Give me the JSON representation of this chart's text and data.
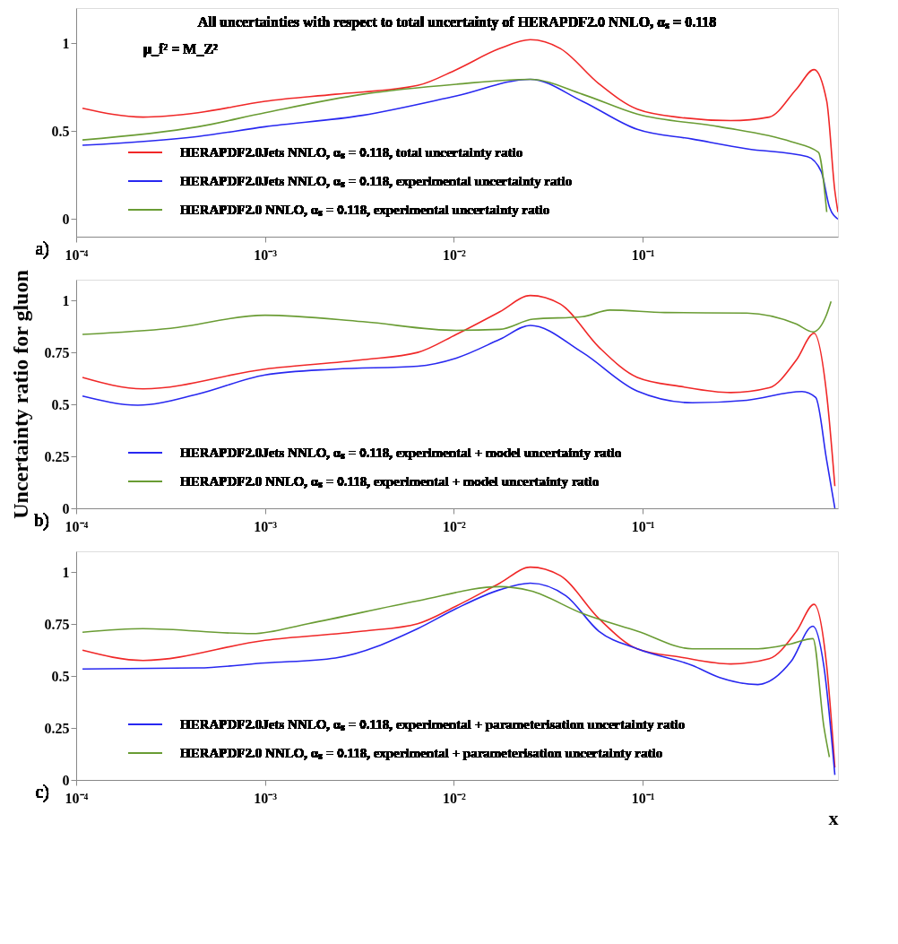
{
  "chart_data": [
    {
      "type": "line",
      "title": "All uncertainties with respect to total uncertainty of  HERAPDF2.0 NNLO, αₛ = 0.118",
      "subtitle": "μ_f² = M_Z²",
      "log": "x",
      "legend": "bottom left",
      "annotations": [
        "a)"
      ],
      "xlim": [
        0.0001,
        1.08
      ],
      "xticks": [
        {
          "value": 0.0001,
          "label": "10⁻⁴"
        },
        {
          "value": 0.001,
          "label": "10⁻³"
        },
        {
          "value": 0.01,
          "label": "10⁻²"
        },
        {
          "value": 0.1,
          "label": "10⁻¹"
        }
      ],
      "ylim": [
        -0.1,
        1.2
      ],
      "yticks": [
        0,
        0.5,
        1
      ],
      "series": [
        {
          "name": "HERAPDF2.0Jets NNLO, αₛ = 0.118, total uncertainty ratio",
          "color": "#f02828",
          "x": [
            0.000108,
            0.000226,
            0.000442,
            0.001,
            0.00236,
            0.00643,
            0.0103,
            0.0175,
            0.0254,
            0.0366,
            0.0585,
            0.0935,
            0.16,
            0.292,
            0.467,
            0.652,
            0.807,
            0.942,
            1.04,
            1.08
          ],
          "values": [
            0.63,
            0.58,
            0.605,
            0.67,
            0.71,
            0.76,
            0.85,
            0.97,
            1.02,
            0.97,
            0.77,
            0.625,
            0.577,
            0.56,
            0.58,
            0.74,
            0.85,
            0.67,
            0.16,
            0.04
          ]
        },
        {
          "name": "HERAPDF2.0Jets NNLO, αₛ = 0.118, experimental uncertainty ratio",
          "color": "#2828f0",
          "x": [
            0.000108,
            0.000442,
            0.001,
            0.00329,
            0.0103,
            0.0254,
            0.0479,
            0.0935,
            0.183,
            0.356,
            0.745,
            0.881,
            0.973,
            1.08
          ],
          "values": [
            0.42,
            0.47,
            0.525,
            0.59,
            0.7,
            0.795,
            0.67,
            0.51,
            0.455,
            0.4,
            0.355,
            0.27,
            0.07,
            0
          ]
        },
        {
          "name": "HERAPDF2.0 NNLO, αₛ = 0.118, experimental uncertainty ratio",
          "color": "#6a9c34",
          "x": [
            0.000108,
            0.000442,
            0.001,
            0.00329,
            0.0103,
            0.0254,
            0.0479,
            0.0935,
            0.255,
            0.61,
            0.851,
            0.942
          ],
          "values": [
            0.45,
            0.525,
            0.605,
            0.71,
            0.767,
            0.795,
            0.71,
            0.597,
            0.525,
            0.44,
            0.38,
            0.04
          ]
        }
      ]
    },
    {
      "type": "line",
      "ylabel": "Uncertainty ratio for gluon",
      "log": "x",
      "legend": "bottom left",
      "annotations": [
        "b)"
      ],
      "xlim": [
        0.0001,
        1.08
      ],
      "xticks": [
        {
          "value": 0.0001,
          "label": "10⁻⁴"
        },
        {
          "value": 0.001,
          "label": "10⁻³"
        },
        {
          "value": 0.01,
          "label": "10⁻²"
        },
        {
          "value": 0.1,
          "label": "10⁻¹"
        }
      ],
      "ylim": [
        0,
        1.1
      ],
      "yticks": [
        0,
        0.25,
        0.5,
        0.75,
        1
      ],
      "series": [
        {
          "color": "#f02828",
          "x": [
            0.000108,
            0.000226,
            0.001,
            0.00329,
            0.00643,
            0.0103,
            0.0175,
            0.0254,
            0.0366,
            0.0585,
            0.0935,
            0.16,
            0.292,
            0.467,
            0.652,
            0.807,
            0.942,
            1.04
          ],
          "values": [
            0.63,
            0.575,
            0.67,
            0.715,
            0.75,
            0.837,
            0.946,
            1.024,
            0.983,
            0.776,
            0.63,
            0.586,
            0.557,
            0.58,
            0.715,
            0.842,
            0.545,
            0.107
          ]
        },
        {
          "name": "HERAPDF2.0Jets NNLO, αₛ = 0.118, experimental + model uncertainty ratio",
          "color": "#2828f0",
          "x": [
            0.000108,
            0.000212,
            0.000442,
            0.001,
            0.00236,
            0.00643,
            0.0103,
            0.0175,
            0.0254,
            0.0479,
            0.0935,
            0.183,
            0.356,
            0.697,
            0.824,
            0.942,
            1.04
          ],
          "values": [
            0.54,
            0.496,
            0.55,
            0.642,
            0.67,
            0.684,
            0.723,
            0.813,
            0.88,
            0.75,
            0.564,
            0.508,
            0.52,
            0.562,
            0.533,
            0.229,
            0
          ]
        },
        {
          "name": "HERAPDF2.0 NNLO, αₛ = 0.118, experimental + model uncertainty ratio",
          "color": "#6a9c34",
          "x": [
            0.000108,
            0.000316,
            0.001,
            0.00329,
            0.0103,
            0.0175,
            0.0262,
            0.0479,
            0.067,
            0.131,
            0.356,
            0.652,
            0.796,
            0.942,
            0.993
          ],
          "values": [
            0.837,
            0.866,
            0.929,
            0.898,
            0.856,
            0.861,
            0.91,
            0.922,
            0.954,
            0.942,
            0.939,
            0.886,
            0.849,
            0.934,
            0.995
          ]
        }
      ]
    },
    {
      "type": "line",
      "xlabel": "x",
      "log": "x",
      "legend": "bottom left",
      "annotations": [
        "c)"
      ],
      "xlim": [
        0.0001,
        1.08
      ],
      "xticks": [
        {
          "value": 0.0001,
          "label": "10⁻⁴"
        },
        {
          "value": 0.001,
          "label": "10⁻³"
        },
        {
          "value": 0.01,
          "label": "10⁻²"
        },
        {
          "value": 0.1,
          "label": "10⁻¹"
        }
      ],
      "ylim": [
        0,
        1.1
      ],
      "yticks": [
        0,
        0.25,
        0.5,
        0.75,
        1
      ],
      "series": [
        {
          "color": "#f02828",
          "x": [
            0.000108,
            0.000226,
            0.001,
            0.00329,
            0.00643,
            0.0103,
            0.0175,
            0.0254,
            0.0366,
            0.0585,
            0.0935,
            0.16,
            0.292,
            0.467,
            0.652,
            0.807,
            0.942,
            1.04
          ],
          "values": [
            0.624,
            0.575,
            0.672,
            0.716,
            0.752,
            0.837,
            0.947,
            1.024,
            0.983,
            0.777,
            0.631,
            0.59,
            0.558,
            0.583,
            0.716,
            0.845,
            0.546,
            0.06
          ]
        },
        {
          "name": "HERAPDF2.0Jets NNLO, αₛ = 0.118, experimental + parameterisation uncertainty ratio",
          "color": "#2828f0",
          "x": [
            0.000108,
            0.000442,
            0.001,
            0.00236,
            0.00643,
            0.0103,
            0.0175,
            0.0254,
            0.0392,
            0.0585,
            0.0935,
            0.183,
            0.255,
            0.407,
            0.61,
            0.796,
            0.91,
            1.04
          ],
          "values": [
            0.534,
            0.539,
            0.563,
            0.587,
            0.728,
            0.825,
            0.915,
            0.947,
            0.886,
            0.716,
            0.631,
            0.551,
            0.493,
            0.459,
            0.57,
            0.74,
            0.546,
            0.024
          ]
        },
        {
          "name": "HERAPDF2.0 NNLO, αₛ = 0.118, experimental + parameterisation uncertainty ratio",
          "color": "#6a9c34",
          "x": [
            0.000108,
            0.000226,
            0.00086,
            0.00169,
            0.00643,
            0.0175,
            0.0254,
            0.0479,
            0.0935,
            0.183,
            0.407,
            0.61,
            0.796,
            0.91,
            0.973
          ],
          "values": [
            0.711,
            0.728,
            0.704,
            0.752,
            0.862,
            0.93,
            0.91,
            0.801,
            0.716,
            0.631,
            0.631,
            0.655,
            0.68,
            0.255,
            0.11
          ]
        }
      ]
    }
  ]
}
